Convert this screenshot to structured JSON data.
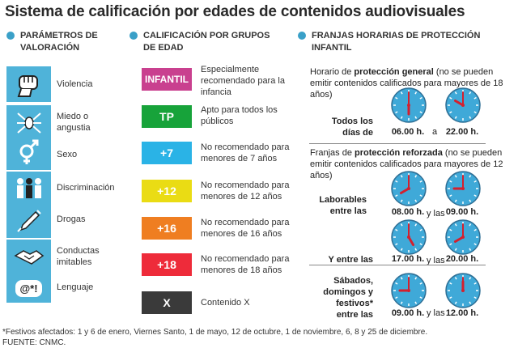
{
  "title": "Sistema de calificación por edades de contenidos audiovisuales",
  "sections": {
    "params": "PARÁMETROS DE VALORACIÓN",
    "ratings": "CALIFICACIÓN POR GRUPOS DE EDAD",
    "hours": "FRANJAS HORARIAS DE PROTECCIÓN INFANTIL"
  },
  "params": [
    {
      "label": "Violencia",
      "icon": "fist-icon"
    },
    {
      "label": "Miedo o angustia",
      "icon": "spider-icon"
    },
    {
      "label": "Sexo",
      "icon": "gender-symbols-icon"
    },
    {
      "label": "Discriminación",
      "icon": "discrimination-icon"
    },
    {
      "label": "Drogas",
      "icon": "syringe-icon"
    },
    {
      "label": "Conductas imitables",
      "icon": "handshake-icon"
    },
    {
      "label": "Lenguaje",
      "icon": "cursing-icon"
    }
  ],
  "cursing_symbol": "@*!",
  "ratings": [
    {
      "badge": "INFANTIL",
      "color": "#c9408f",
      "desc": "Especialmente recomendado para la infancia"
    },
    {
      "badge": "TP",
      "color": "#17a33a",
      "desc": "Apto para todos los públicos"
    },
    {
      "badge": "+7",
      "color": "#2ab3e6",
      "desc": "No recomendado para menores de 7 años"
    },
    {
      "badge": "+12",
      "color": "#eadc14",
      "desc": "No recomendado para menores de 12 años"
    },
    {
      "badge": "+16",
      "color": "#ef7e21",
      "desc": "No recomendado para menores de 16 años"
    },
    {
      "badge": "+18",
      "color": "#ee2b3a",
      "desc": "No recomendado para menores de 18 años"
    },
    {
      "badge": "X",
      "color": "#3a3a3a",
      "desc": "Contenido X"
    }
  ],
  "general": {
    "pre": "Horario de ",
    "bold": "protección general",
    "post": " (no se pueden emitir contenidos calificados para mayores de 18 años)",
    "row_label": "Todos los días de",
    "from": "06.00 h.",
    "connector": "a",
    "to": "22.00 h."
  },
  "reinforced": {
    "pre": "Franjas de ",
    "bold": "protección reforzada",
    "post": " (no se pueden emitir contenidos calificados para mayores de 12 años)",
    "rows": [
      {
        "label": "Laborables entre las",
        "from": "08.00 h.",
        "connector": "y las",
        "to": "09.00 h."
      },
      {
        "label": "Y entre las",
        "from": "17.00 h.",
        "connector": "y las",
        "to": "20.00 h."
      },
      {
        "label": "Sábados, domingos y festivos* entre las",
        "from": "09.00 h.",
        "connector": "y las",
        "to": "12.00 h."
      }
    ]
  },
  "clocks": [
    {
      "hour": 6,
      "minute": 0
    },
    {
      "hour": 22,
      "minute": 0
    },
    {
      "hour": 8,
      "minute": 0
    },
    {
      "hour": 9,
      "minute": 0
    },
    {
      "hour": 17,
      "minute": 0
    },
    {
      "hour": 20,
      "minute": 0
    },
    {
      "hour": 9,
      "minute": 0
    },
    {
      "hour": 12,
      "minute": 0
    }
  ],
  "footnote": "*Festivos afectados: 1 y 6 de enero, Viernes Santo, 1 de mayo, 12 de octubre, 1 de noviembre, 6, 8 y 25 de diciembre.",
  "source": "FUENTE: CNMC.",
  "colors": {
    "accent": "#3aa0c8",
    "icon_bg": "#4fb3d9",
    "clock_face": "#3fa9d8",
    "hand": "#d4202e"
  }
}
